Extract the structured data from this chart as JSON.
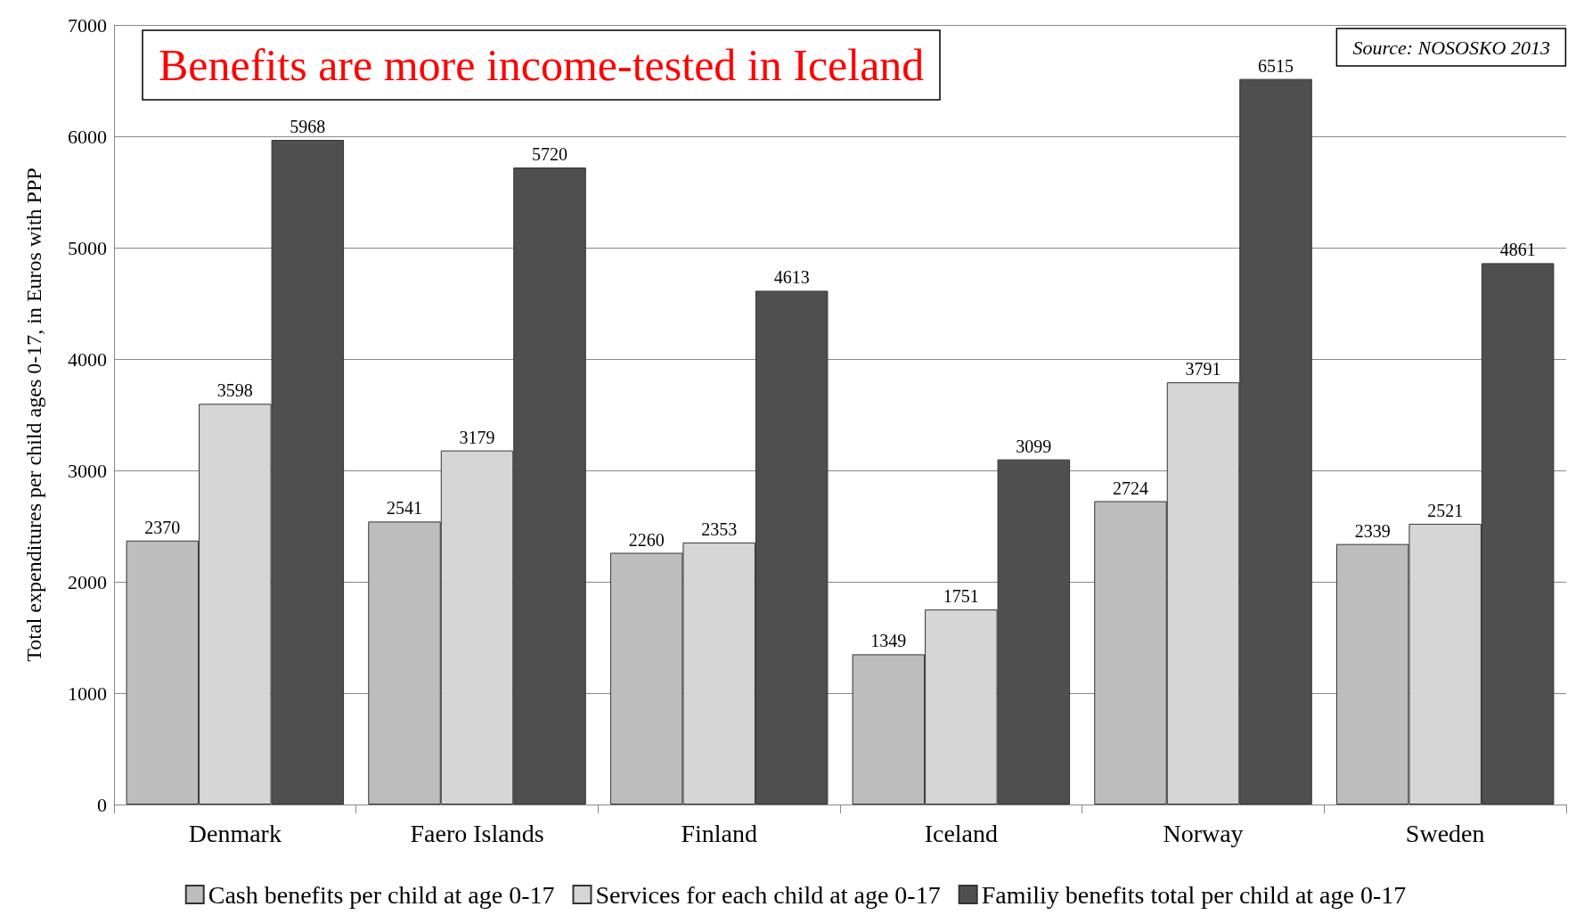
{
  "chart_data": {
    "type": "bar",
    "title": "Benefits are more income-tested in Iceland",
    "ylabel": "Total expenditures per child ages 0-17, in Euros with PPP",
    "annotations": [
      "Source: NOSOSKO 2013"
    ],
    "categories": [
      "Denmark",
      "Faero Islands",
      "Finland",
      "Iceland",
      "Norway",
      "Sweden"
    ],
    "series": [
      {
        "name": "Cash benefits per child at age 0-17",
        "color": "#bdbdbd",
        "values": [
          2370,
          2541,
          2260,
          1349,
          2724,
          2339
        ]
      },
      {
        "name": "Services for each child at age 0-17",
        "color": "#d6d6d6",
        "values": [
          3598,
          3179,
          2353,
          1751,
          3791,
          2521
        ]
      },
      {
        "name": "Familiy benefits total per child at age 0-17",
        "color": "#4f4f4f",
        "values": [
          5968,
          5720,
          4613,
          3099,
          6515,
          4861
        ]
      }
    ],
    "ylim": [
      0,
      7000
    ],
    "yticks": [
      0,
      1000,
      2000,
      3000,
      4000,
      5000,
      6000,
      7000
    ],
    "grid": "y",
    "legend": "bottom",
    "data_labels": true
  }
}
